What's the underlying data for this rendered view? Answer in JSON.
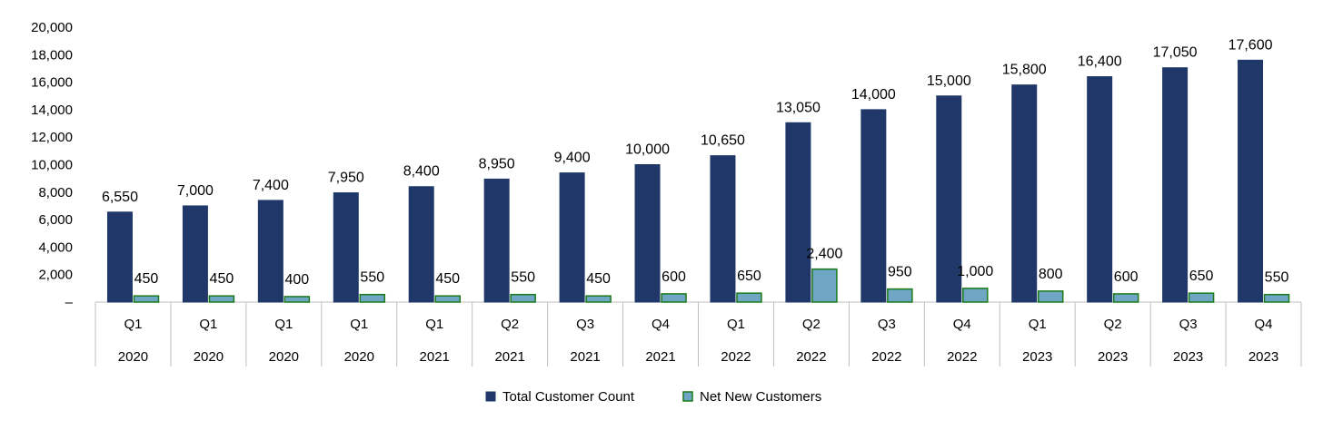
{
  "chart_data": {
    "type": "bar",
    "title": "",
    "xlabel": "",
    "ylabel": "",
    "ylim": [
      0,
      20000
    ],
    "yticks": [
      0,
      2000,
      4000,
      6000,
      8000,
      10000,
      12000,
      14000,
      16000,
      18000,
      20000
    ],
    "ytick_labels": [
      "–",
      "2,000",
      "4,000",
      "6,000",
      "8,000",
      "10,000",
      "12,000",
      "14,000",
      "16,000",
      "18,000",
      "20,000"
    ],
    "grid": false,
    "legend_position": "bottom",
    "categories": [
      {
        "quarter": "Q1",
        "year": "2020"
      },
      {
        "quarter": "Q1",
        "year": "2020"
      },
      {
        "quarter": "Q1",
        "year": "2020"
      },
      {
        "quarter": "Q1",
        "year": "2020"
      },
      {
        "quarter": "Q1",
        "year": "2021"
      },
      {
        "quarter": "Q2",
        "year": "2021"
      },
      {
        "quarter": "Q3",
        "year": "2021"
      },
      {
        "quarter": "Q4",
        "year": "2021"
      },
      {
        "quarter": "Q1",
        "year": "2022"
      },
      {
        "quarter": "Q2",
        "year": "2022"
      },
      {
        "quarter": "Q3",
        "year": "2022"
      },
      {
        "quarter": "Q4",
        "year": "2022"
      },
      {
        "quarter": "Q1",
        "year": "2023"
      },
      {
        "quarter": "Q2",
        "year": "2023"
      },
      {
        "quarter": "Q3",
        "year": "2023"
      },
      {
        "quarter": "Q4",
        "year": "2023"
      }
    ],
    "series": [
      {
        "name": "Total Customer Count",
        "color": "#1f3869",
        "border": "#1f3869",
        "values": [
          6550,
          7000,
          7400,
          7950,
          8400,
          8950,
          9400,
          10000,
          10650,
          13050,
          14000,
          15000,
          15800,
          16400,
          17050,
          17600
        ],
        "labels": [
          "6,550",
          "7,000",
          "7,400",
          "7,950",
          "8,400",
          "8,950",
          "9,400",
          "10,000",
          "10,650",
          "13,050",
          "14,000",
          "15,000",
          "15,800",
          "16,400",
          "17,050",
          "17,600"
        ]
      },
      {
        "name": "Net New Customers",
        "color": "#6fa6c4",
        "border": "#1a7a1a",
        "values": [
          450,
          450,
          400,
          550,
          450,
          550,
          450,
          600,
          650,
          2400,
          950,
          1000,
          800,
          600,
          650,
          550
        ],
        "labels": [
          "450",
          "450",
          "400",
          "550",
          "450",
          "550",
          "450",
          "600",
          "650",
          "2,400",
          "950",
          "1,000",
          "800",
          "600",
          "650",
          "550"
        ]
      }
    ]
  }
}
